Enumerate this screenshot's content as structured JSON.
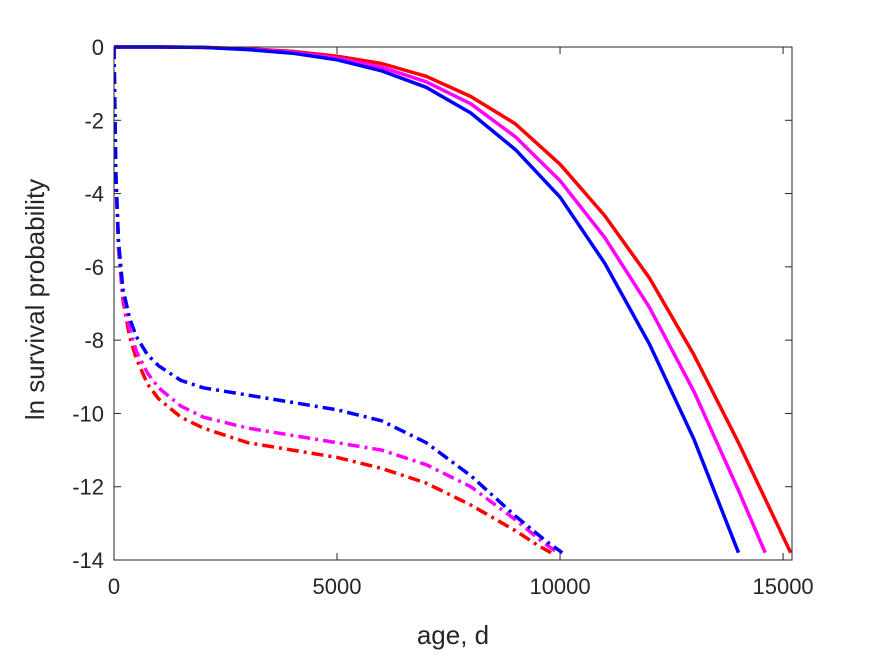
{
  "chart_data": {
    "type": "line",
    "xlabel": "age, d",
    "ylabel": "ln survival probability",
    "xlim": [
      0,
      15200
    ],
    "ylim": [
      -14,
      0
    ],
    "xticks": [
      {
        "value": 0,
        "label": "0"
      },
      {
        "value": 5000,
        "label": "5000"
      },
      {
        "value": 10000,
        "label": "10000"
      },
      {
        "value": 15000,
        "label": "15000"
      }
    ],
    "yticks": [
      {
        "value": 0,
        "label": "0"
      },
      {
        "value": -2,
        "label": "-2"
      },
      {
        "value": -4,
        "label": "-4"
      },
      {
        "value": -6,
        "label": "-6"
      },
      {
        "value": -8,
        "label": "-8"
      },
      {
        "value": -10,
        "label": "-10"
      },
      {
        "value": -12,
        "label": "-12"
      },
      {
        "value": -14,
        "label": "-14"
      }
    ],
    "grid": false,
    "series": [
      {
        "color": "#ff0000",
        "style": "solid",
        "x": [
          0,
          1000,
          2000,
          3000,
          4000,
          5000,
          6000,
          7000,
          8000,
          9000,
          10000,
          11000,
          12000,
          13000,
          14000,
          15170
        ],
        "y": [
          0,
          0,
          -0.01,
          -0.05,
          -0.12,
          -0.25,
          -0.45,
          -0.8,
          -1.35,
          -2.1,
          -3.2,
          -4.6,
          -6.3,
          -8.4,
          -10.8,
          -13.8
        ]
      },
      {
        "color": "#ff00ff",
        "style": "solid",
        "x": [
          0,
          1000,
          2000,
          3000,
          4000,
          5000,
          6000,
          7000,
          8000,
          9000,
          10000,
          11000,
          12000,
          13000,
          14000,
          14600
        ],
        "y": [
          0,
          0,
          -0.01,
          -0.06,
          -0.14,
          -0.3,
          -0.55,
          -0.95,
          -1.55,
          -2.45,
          -3.65,
          -5.2,
          -7.1,
          -9.4,
          -12.1,
          -13.8
        ]
      },
      {
        "color": "#0000ff",
        "style": "solid",
        "x": [
          0,
          1000,
          2000,
          3000,
          4000,
          5000,
          6000,
          7000,
          8000,
          9000,
          10000,
          11000,
          12000,
          13000,
          14000
        ],
        "y": [
          0,
          0,
          -0.01,
          -0.07,
          -0.17,
          -0.35,
          -0.65,
          -1.1,
          -1.8,
          -2.8,
          -4.1,
          -5.9,
          -8.1,
          -10.7,
          -13.8
        ]
      },
      {
        "color": "#ff0000",
        "style": "dashdot",
        "x": [
          0,
          40,
          100,
          200,
          350,
          500,
          750,
          1000,
          1500,
          2000,
          3000,
          4000,
          5000,
          6000,
          7000,
          8000,
          9000,
          9500,
          9800
        ],
        "y": [
          0,
          -3.5,
          -5.5,
          -6.9,
          -7.9,
          -8.5,
          -9.2,
          -9.6,
          -10.1,
          -10.4,
          -10.8,
          -11.0,
          -11.2,
          -11.5,
          -11.9,
          -12.5,
          -13.2,
          -13.6,
          -13.8
        ]
      },
      {
        "color": "#ff00ff",
        "style": "dashdot",
        "x": [
          0,
          40,
          100,
          200,
          350,
          500,
          750,
          1000,
          1500,
          2000,
          3000,
          4000,
          5000,
          6000,
          7000,
          8000,
          9000,
          9600,
          9950
        ],
        "y": [
          0,
          -3.5,
          -5.4,
          -6.8,
          -7.7,
          -8.3,
          -8.9,
          -9.3,
          -9.8,
          -10.1,
          -10.4,
          -10.6,
          -10.8,
          -11.0,
          -11.4,
          -12.0,
          -12.9,
          -13.5,
          -13.8
        ]
      },
      {
        "color": "#0000ff",
        "style": "dashdot",
        "x": [
          0,
          40,
          100,
          200,
          350,
          500,
          750,
          1000,
          1500,
          2000,
          3000,
          4000,
          5000,
          6000,
          7000,
          8000,
          9000,
          9700,
          10050
        ],
        "y": [
          0,
          -3.4,
          -5.3,
          -6.6,
          -7.4,
          -7.9,
          -8.4,
          -8.7,
          -9.1,
          -9.3,
          -9.5,
          -9.7,
          -9.9,
          -10.2,
          -10.8,
          -11.7,
          -12.8,
          -13.5,
          -13.8
        ]
      }
    ]
  }
}
